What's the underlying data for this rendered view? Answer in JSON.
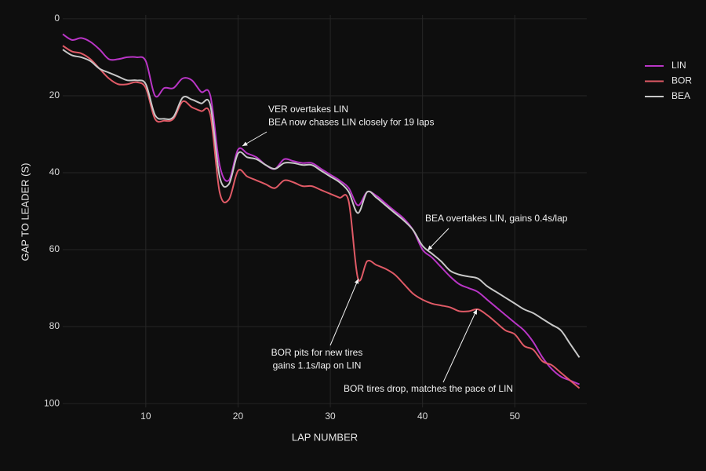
{
  "chart_data": {
    "type": "line",
    "xlabel": "LAP NUMBER",
    "ylabel": "GAP TO LEADER (S)",
    "x": [
      1,
      2,
      3,
      4,
      5,
      6,
      7,
      8,
      9,
      10,
      11,
      12,
      13,
      14,
      15,
      16,
      17,
      18,
      19,
      20,
      21,
      22,
      23,
      24,
      25,
      26,
      27,
      28,
      29,
      30,
      31,
      32,
      33,
      34,
      35,
      36,
      37,
      38,
      39,
      40,
      41,
      42,
      43,
      44,
      45,
      46,
      47,
      48,
      49,
      50,
      51,
      52,
      53,
      54,
      55,
      56,
      57
    ],
    "series": [
      {
        "name": "LIN",
        "color": "#b935c6",
        "values": [
          4,
          5.5,
          5,
          6,
          8,
          10.5,
          10.5,
          10,
          10,
          11,
          20,
          18,
          18,
          15.5,
          16,
          19,
          20,
          38,
          42,
          34,
          35,
          36,
          38,
          39,
          36.5,
          37,
          37.5,
          37.5,
          39,
          40.5,
          42,
          44,
          48.5,
          45,
          46,
          48,
          50,
          52,
          55,
          60,
          62,
          64.5,
          67,
          69,
          70,
          71,
          73,
          75,
          77,
          79,
          81,
          84,
          88,
          91,
          93,
          94,
          95
        ]
      },
      {
        "name": "BOR",
        "color": "#e05a66",
        "values": [
          7,
          8.5,
          9,
          10.5,
          13,
          15.5,
          17,
          17,
          16.5,
          18,
          26,
          26.5,
          26,
          21.5,
          23,
          24,
          25,
          45,
          47,
          39.5,
          41,
          42,
          43,
          44,
          42,
          42.5,
          43.5,
          43.5,
          44.5,
          45.5,
          46.5,
          47.5,
          67.5,
          63,
          64,
          65,
          66.5,
          69,
          71.5,
          73,
          74,
          74.5,
          75,
          76,
          76,
          75.5,
          77,
          79,
          81,
          82,
          85,
          86,
          89,
          90,
          92,
          94,
          96
        ]
      },
      {
        "name": "BEA",
        "color": "#c8c8c8",
        "values": [
          8,
          9.5,
          10,
          11,
          13,
          14,
          15,
          16,
          16,
          17,
          25,
          26,
          25.5,
          20.5,
          21,
          22,
          22.5,
          41,
          43,
          35,
          36,
          36.5,
          38,
          39,
          37.5,
          37.5,
          38,
          38,
          39.5,
          41,
          42.5,
          45,
          50.5,
          45,
          46.5,
          48.5,
          50.5,
          52.5,
          55,
          59,
          61,
          63,
          65.5,
          66.5,
          67,
          67.5,
          69.5,
          71,
          72.5,
          74,
          75.5,
          76.5,
          78,
          79.5,
          81,
          84.5,
          88
        ]
      }
    ],
    "xlim": [
      1,
      57.8
    ],
    "xticks": [
      10,
      20,
      30,
      40,
      50
    ],
    "ylim": [
      -1,
      101
    ],
    "yreversed": true,
    "yticks": [
      0,
      20,
      40,
      60,
      80,
      100
    ],
    "grid": true,
    "legend": "top-right",
    "annotations": [
      {
        "lines": [
          "VER overtakes LIN",
          "BEA now chases LIN closely for 19 laps"
        ]
      },
      {
        "lines": [
          "BEA overtakes LIN, gains 0.4s/lap"
        ]
      },
      {
        "lines": [
          "BOR pits for new tires",
          "gains 1.1s/lap on LIN"
        ]
      },
      {
        "lines": [
          "BOR tires drop, matches the pace of LIN"
        ]
      }
    ]
  }
}
